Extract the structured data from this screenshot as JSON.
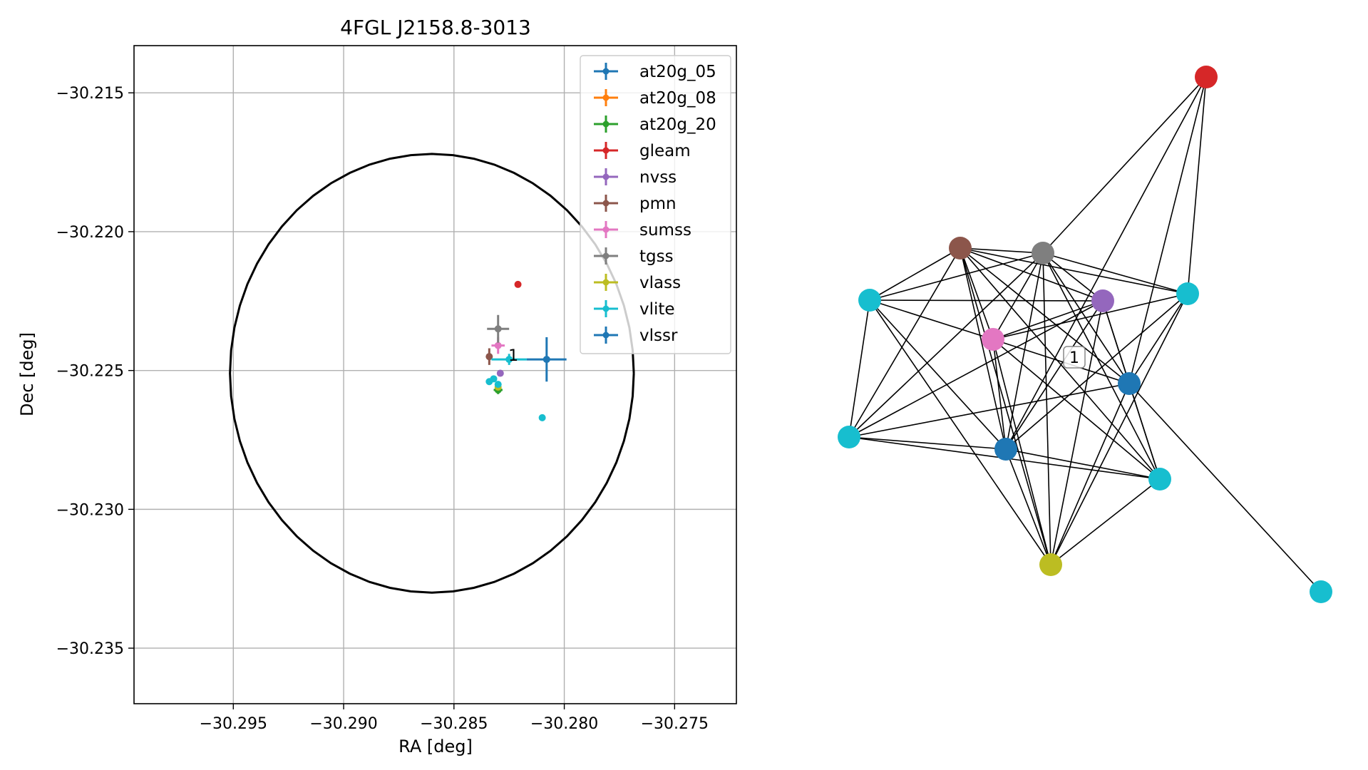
{
  "chart_data": [
    {
      "type": "scatter",
      "title": "4FGL J2158.8-3013",
      "xlabel": "RA [deg]",
      "ylabel": "Dec [deg]",
      "xlim": [
        -30.2995,
        -30.2722
      ],
      "ylim": [
        -30.237,
        -30.2133
      ],
      "xticks": [
        -30.295,
        -30.29,
        -30.285,
        -30.28,
        -30.275
      ],
      "xtick_labels": [
        "−30.295",
        "−30.290",
        "−30.285",
        "−30.280",
        "−30.275"
      ],
      "yticks": [
        -30.215,
        -30.22,
        -30.225,
        -30.23,
        -30.235
      ],
      "ytick_labels": [
        "−30.215",
        "−30.220",
        "−30.225",
        "−30.230",
        "−30.235"
      ],
      "grid": true,
      "legend_position": "top-right",
      "ellipse": {
        "center": [
          -30.286,
          -30.2251
        ],
        "radius_ra": 0.00915,
        "radius_dec": 0.0079
      },
      "annotation": {
        "text": "1",
        "x": -30.2826,
        "y": -30.2246
      },
      "series": [
        {
          "name": "at20g_05",
          "color": "#1f77b4",
          "points": [
            {
              "x": -30.2808,
              "y": -30.2246,
              "xerr": 0.0009,
              "yerr": 0.0008
            }
          ]
        },
        {
          "name": "at20g_08",
          "color": "#ff7f0e",
          "points": []
        },
        {
          "name": "at20g_20",
          "color": "#2ca02c",
          "points": [
            {
              "x": -30.283,
              "y": -30.2257,
              "xerr": 0.0002,
              "yerr": 0.00015
            }
          ]
        },
        {
          "name": "gleam",
          "color": "#d62728",
          "points": [
            {
              "x": -30.2821,
              "y": -30.2219,
              "xerr": 0,
              "yerr": 0
            }
          ]
        },
        {
          "name": "nvss",
          "color": "#9467bd",
          "points": [
            {
              "x": -30.2829,
              "y": -30.2251,
              "xerr": 0,
              "yerr": 0
            }
          ]
        },
        {
          "name": "pmn",
          "color": "#8c564b",
          "points": [
            {
              "x": -30.2834,
              "y": -30.2245,
              "xerr": 0.0001,
              "yerr": 0.0003
            }
          ]
        },
        {
          "name": "sumss",
          "color": "#e377c2",
          "points": [
            {
              "x": -30.283,
              "y": -30.2241,
              "xerr": 0.0003,
              "yerr": 0.0003
            }
          ]
        },
        {
          "name": "tgss",
          "color": "#7f7f7f",
          "points": [
            {
              "x": -30.283,
              "y": -30.2235,
              "xerr": 0.0005,
              "yerr": 0.0005
            }
          ]
        },
        {
          "name": "vlass",
          "color": "#bcbd22",
          "points": [
            {
              "x": -30.283,
              "y": -30.2256,
              "xerr": 0,
              "yerr": 0
            }
          ]
        },
        {
          "name": "vlite",
          "color": "#17becf",
          "points": [
            {
              "x": -30.2825,
              "y": -30.2246,
              "xerr": 0.0008,
              "yerr": 0.0002
            },
            {
              "x": -30.2834,
              "y": -30.2254,
              "xerr": 0,
              "yerr": 0
            },
            {
              "x": -30.2832,
              "y": -30.2253,
              "xerr": 0,
              "yerr": 0
            },
            {
              "x": -30.283,
              "y": -30.2255,
              "xerr": 0,
              "yerr": 0
            },
            {
              "x": -30.281,
              "y": -30.2267,
              "xerr": 0,
              "yerr": 0
            }
          ]
        },
        {
          "name": "vlssr",
          "color": "#1f77b4",
          "points": []
        }
      ]
    },
    {
      "type": "network",
      "node_color_by_catalog": true,
      "nodes": [
        {
          "id": "gleam",
          "color": "#d62728",
          "label": ""
        },
        {
          "id": "pmn",
          "color": "#8c564b",
          "label": ""
        },
        {
          "id": "tgss",
          "color": "#7f7f7f",
          "label": ""
        },
        {
          "id": "vlite_a",
          "color": "#17becf",
          "label": ""
        },
        {
          "id": "nvss",
          "color": "#9467bd",
          "label": ""
        },
        {
          "id": "vlite_b",
          "color": "#17becf",
          "label": ""
        },
        {
          "id": "sumss",
          "color": "#e377c2",
          "label": ""
        },
        {
          "id": "at20g_05",
          "color": "#1f77b4",
          "label": ""
        },
        {
          "id": "vlite_c",
          "color": "#17becf",
          "label": ""
        },
        {
          "id": "vlssr",
          "color": "#1f77b4",
          "label": ""
        },
        {
          "id": "vlite_d",
          "color": "#17becf",
          "label": ""
        },
        {
          "id": "vlass",
          "color": "#bcbd22",
          "label": ""
        },
        {
          "id": "vlite_e",
          "color": "#17becf",
          "label": ""
        }
      ],
      "edges": [
        [
          "gleam",
          "tgss"
        ],
        [
          "gleam",
          "vlite_b"
        ],
        [
          "gleam",
          "at20g_05"
        ],
        [
          "gleam",
          "vlssr"
        ],
        [
          "pmn",
          "tgss"
        ],
        [
          "pmn",
          "vlite_a"
        ],
        [
          "pmn",
          "nvss"
        ],
        [
          "pmn",
          "vlite_b"
        ],
        [
          "pmn",
          "sumss"
        ],
        [
          "pmn",
          "at20g_05"
        ],
        [
          "pmn",
          "vlite_c"
        ],
        [
          "pmn",
          "vlssr"
        ],
        [
          "pmn",
          "vlite_d"
        ],
        [
          "pmn",
          "vlass"
        ],
        [
          "tgss",
          "vlite_a"
        ],
        [
          "tgss",
          "nvss"
        ],
        [
          "tgss",
          "vlite_b"
        ],
        [
          "tgss",
          "sumss"
        ],
        [
          "tgss",
          "at20g_05"
        ],
        [
          "tgss",
          "vlite_c"
        ],
        [
          "tgss",
          "vlssr"
        ],
        [
          "tgss",
          "vlite_d"
        ],
        [
          "tgss",
          "vlass"
        ],
        [
          "vlite_a",
          "nvss"
        ],
        [
          "vlite_a",
          "sumss"
        ],
        [
          "vlite_a",
          "vlssr"
        ],
        [
          "vlite_a",
          "vlite_c"
        ],
        [
          "vlite_a",
          "vlass"
        ],
        [
          "nvss",
          "sumss"
        ],
        [
          "nvss",
          "at20g_05"
        ],
        [
          "nvss",
          "vlite_c"
        ],
        [
          "nvss",
          "vlssr"
        ],
        [
          "nvss",
          "vlite_d"
        ],
        [
          "nvss",
          "vlass"
        ],
        [
          "vlite_b",
          "sumss"
        ],
        [
          "vlite_b",
          "at20g_05"
        ],
        [
          "vlite_b",
          "vlssr"
        ],
        [
          "vlite_b",
          "vlass"
        ],
        [
          "sumss",
          "at20g_05"
        ],
        [
          "sumss",
          "vlssr"
        ],
        [
          "sumss",
          "vlite_d"
        ],
        [
          "sumss",
          "vlass"
        ],
        [
          "at20g_05",
          "vlite_c"
        ],
        [
          "at20g_05",
          "vlite_d"
        ],
        [
          "at20g_05",
          "vlass"
        ],
        [
          "at20g_05",
          "vlite_e"
        ],
        [
          "vlite_c",
          "vlssr"
        ],
        [
          "vlite_c",
          "vlite_d"
        ],
        [
          "vlssr",
          "vlite_d"
        ],
        [
          "vlssr",
          "vlass"
        ],
        [
          "vlite_d",
          "vlass"
        ]
      ],
      "annotation": {
        "text": "1"
      }
    }
  ]
}
